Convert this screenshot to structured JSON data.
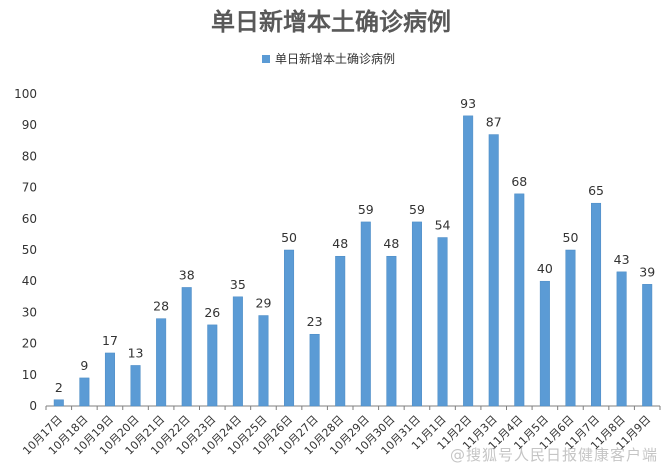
{
  "colors": {
    "bar": "#5B9BD5",
    "bar_stroke": "#4A8AC4",
    "axis": "#7f7f7f",
    "text": "#333333",
    "title": "#595959"
  },
  "watermark": "@搜狐号人民日报健康客户端",
  "chart_data": {
    "type": "bar",
    "title": "单日新增本土确诊病例",
    "xlabel": "",
    "ylabel": "",
    "ylim": [
      0,
      100
    ],
    "yticks": [
      0,
      10,
      20,
      30,
      40,
      50,
      60,
      70,
      80,
      90,
      100
    ],
    "grid": false,
    "legend_position": "top-center",
    "categories": [
      "10月17日",
      "10月18日",
      "10月19日",
      "10月20日",
      "10月21日",
      "10月22日",
      "10月23日",
      "10月24日",
      "10月25日",
      "10月26日",
      "10月27日",
      "10月28日",
      "10月29日",
      "10月30日",
      "10月31日",
      "11月1日",
      "11月2日",
      "11月3日",
      "11月4日",
      "11月5日",
      "11月6日",
      "11月7日",
      "11月8日",
      "11月9日"
    ],
    "series": [
      {
        "name": "单日新增本土确诊病例",
        "values": [
          2,
          9,
          17,
          13,
          28,
          38,
          26,
          35,
          29,
          50,
          23,
          48,
          59,
          48,
          59,
          54,
          93,
          87,
          68,
          40,
          50,
          65,
          43,
          39
        ]
      }
    ]
  }
}
